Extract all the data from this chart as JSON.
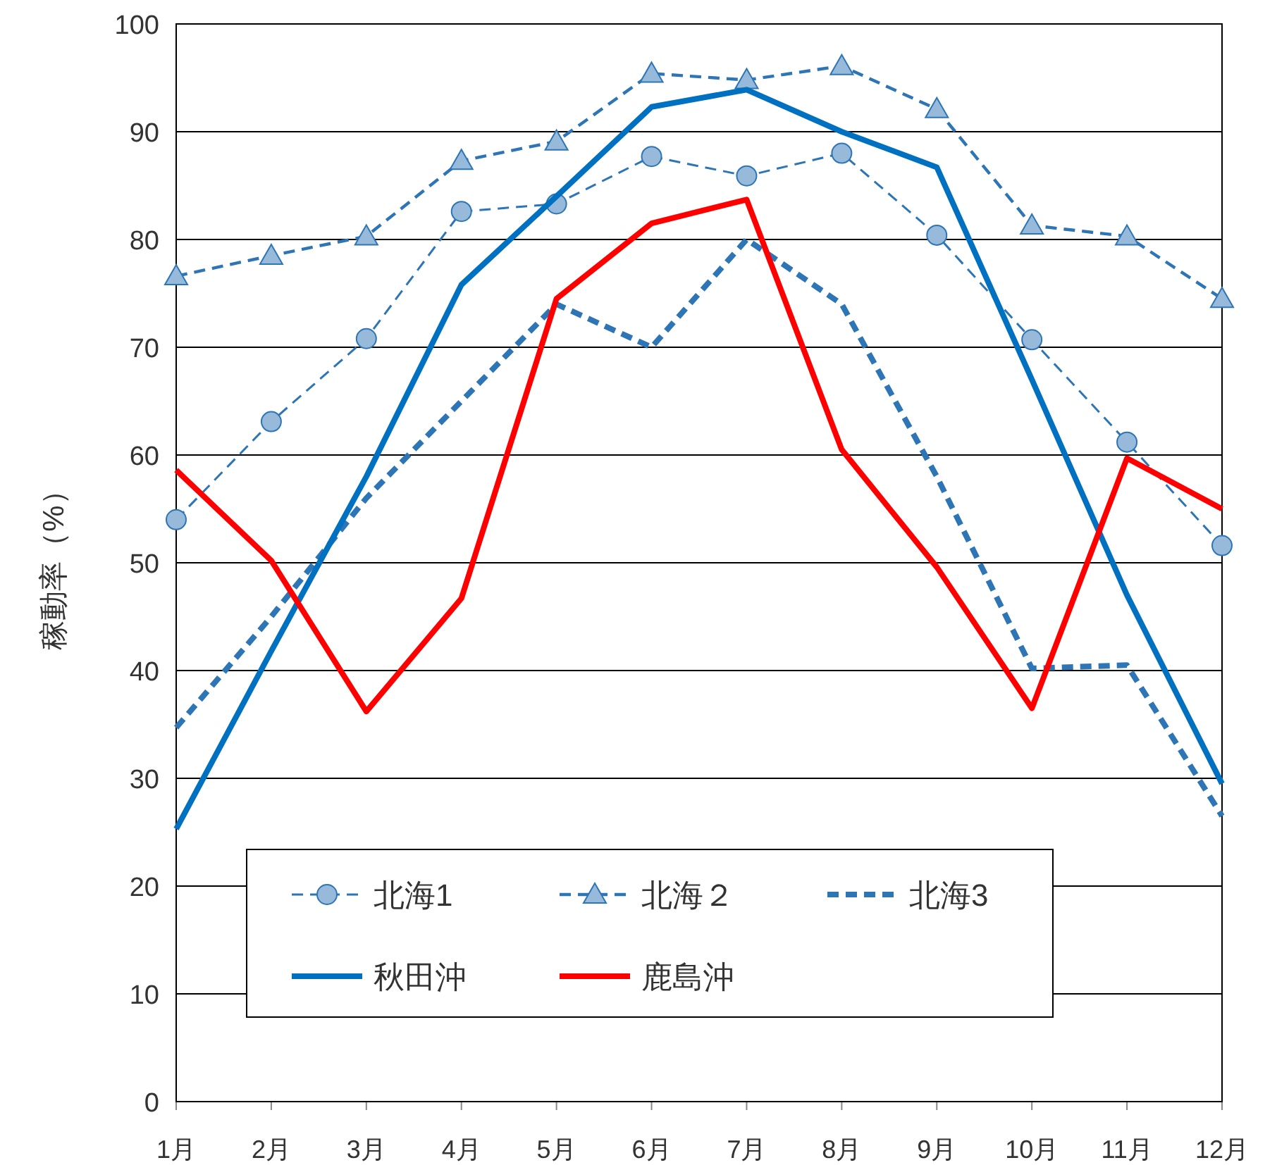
{
  "chart_data": {
    "type": "line",
    "ylabel": "稼動率（%）",
    "categories": [
      "1月",
      "2月",
      "3月",
      "4月",
      "5月",
      "6月",
      "7月",
      "8月",
      "9月",
      "10月",
      "11月",
      "12月"
    ],
    "series": [
      {
        "name": "北海1",
        "color": "#2e75b6",
        "marker": "circle",
        "line_style": "dashed",
        "values": [
          54.0,
          63.1,
          70.8,
          82.6,
          83.3,
          87.7,
          85.9,
          88.0,
          80.4,
          70.7,
          61.2,
          51.6
        ]
      },
      {
        "name": "北海２",
        "color": "#2e75b6",
        "marker": "triangle",
        "line_style": "dashed",
        "values": [
          76.6,
          78.5,
          80.3,
          87.3,
          89.1,
          95.4,
          94.8,
          96.1,
          92.1,
          81.3,
          80.3,
          74.5
        ]
      },
      {
        "name": "北海3",
        "color": "#2e75b6",
        "marker": "none",
        "line_style": "dashed",
        "values": [
          34.7,
          45,
          56,
          65,
          74,
          70,
          80,
          74,
          58,
          40.2,
          40.5,
          26.5
        ]
      },
      {
        "name": "秋田沖",
        "color": "#0070c0",
        "marker": "none",
        "line_style": "solid",
        "values": [
          25.3,
          41.8,
          58,
          75.8,
          84,
          92.3,
          93.9,
          90,
          86.7,
          67,
          47,
          29.5
        ]
      },
      {
        "name": "鹿島沖",
        "color": "#ff0000",
        "marker": "none",
        "line_style": "solid",
        "values": [
          58.6,
          50.2,
          36.2,
          46.7,
          74.5,
          81.5,
          83.7,
          60.5,
          49.6,
          36.5,
          59.7,
          55
        ]
      }
    ],
    "ylim": [
      0,
      100
    ],
    "yticks": [
      0,
      10,
      20,
      30,
      40,
      50,
      60,
      70,
      80,
      90,
      100
    ],
    "grid": "y",
    "legend": "bottom"
  }
}
